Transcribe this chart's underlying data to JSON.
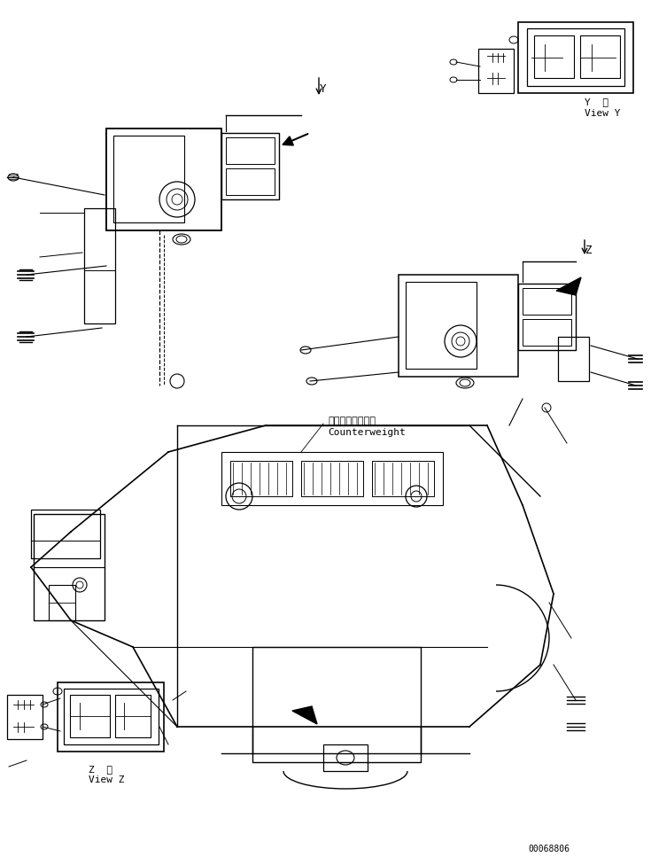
{
  "bg_color": "#ffffff",
  "line_color": "#000000",
  "fig_width": 7.35,
  "fig_height": 9.67,
  "dpi": 100,
  "part_number": "00068806",
  "view_y_label": "Y  視\nView Y",
  "view_z_label": "Z  視\nView Z",
  "counterweight_ja": "カウンタウェイト",
  "counterweight_en": "Counterweight"
}
